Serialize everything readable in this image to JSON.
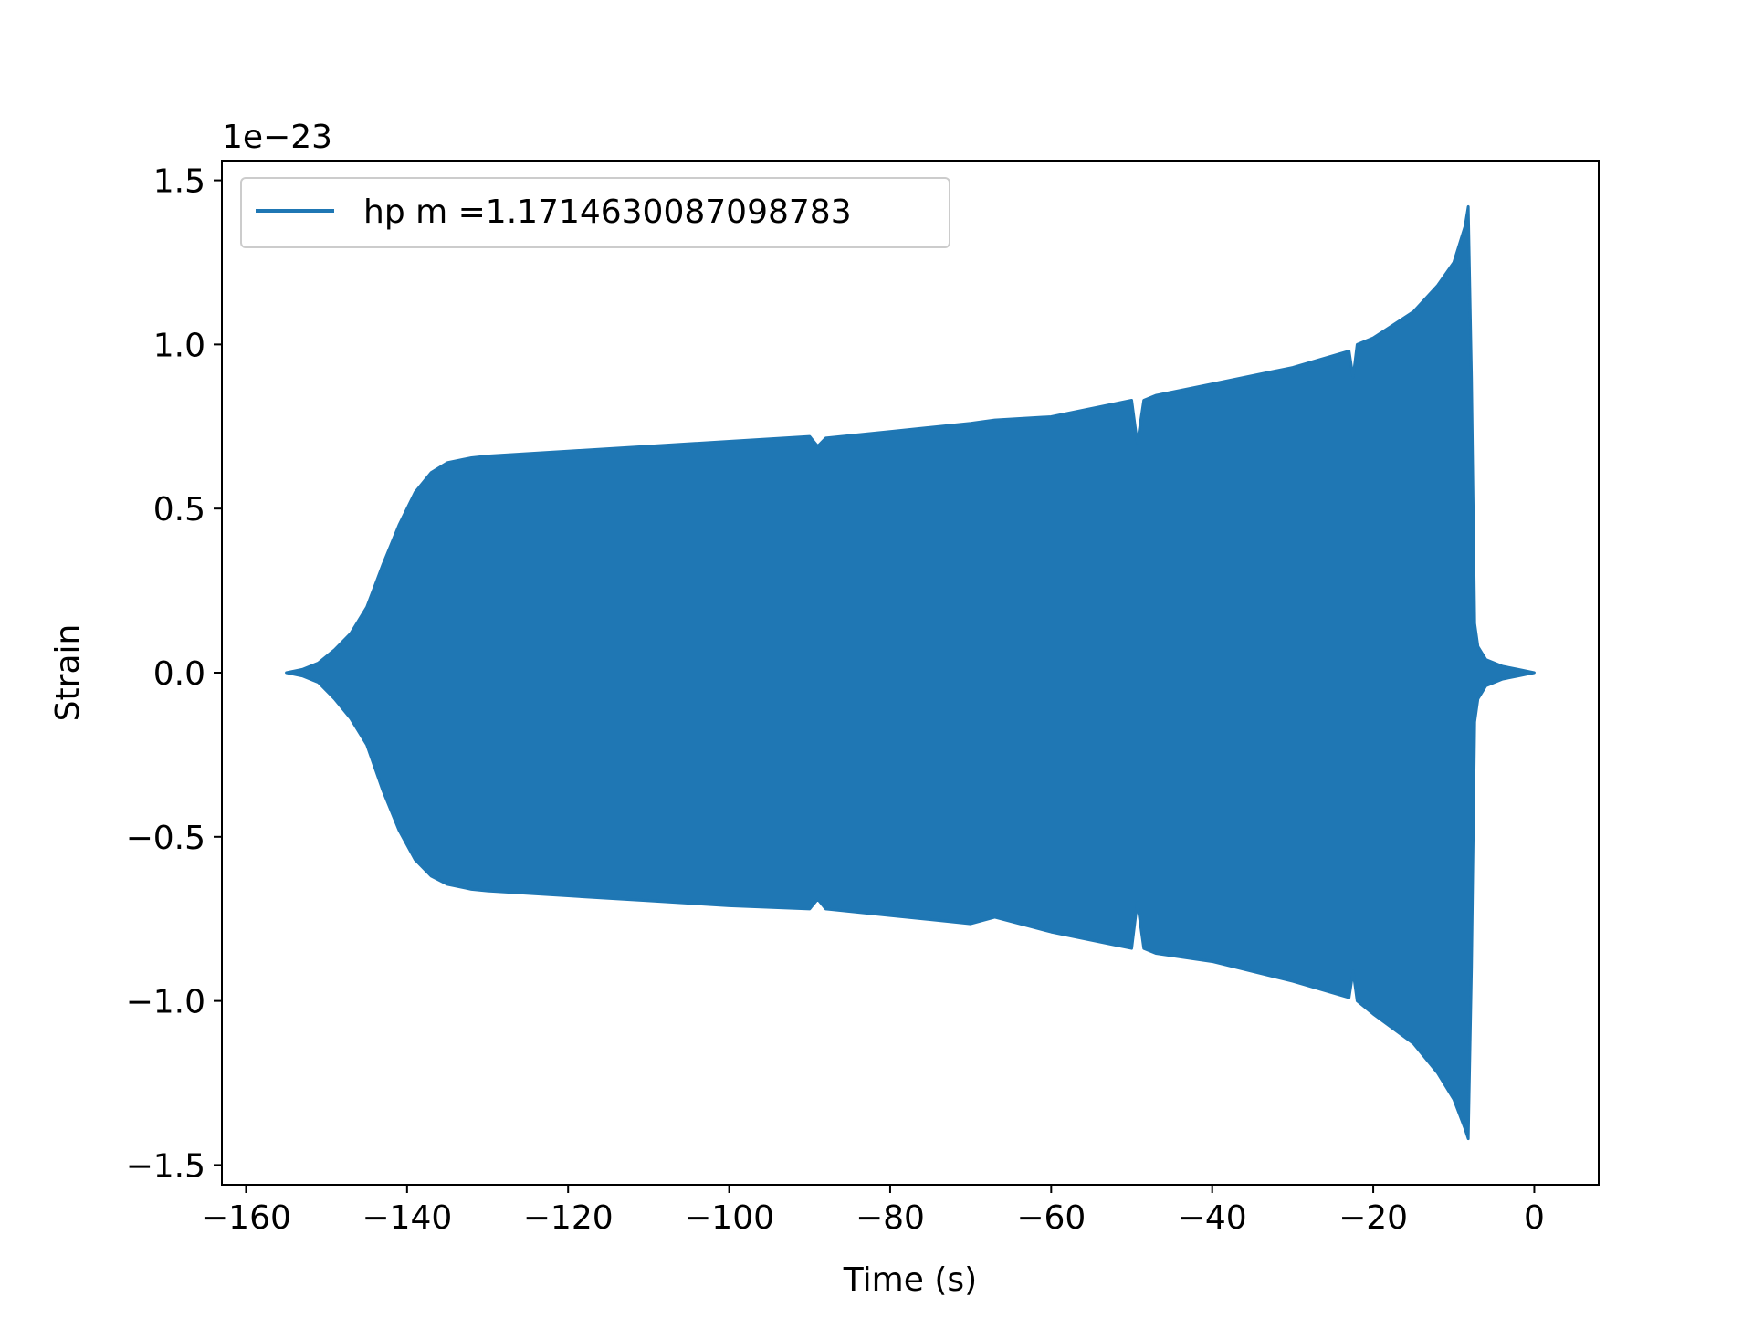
{
  "chart_data": {
    "type": "line",
    "title": "",
    "xlabel": "Time (s)",
    "ylabel": "Strain",
    "y_offset_label": "1e−23",
    "xlim": [
      -163,
      8
    ],
    "ylim": [
      -1.56,
      1.56
    ],
    "x_ticks": [
      -160,
      -140,
      -120,
      -100,
      -80,
      -60,
      -40,
      -20,
      0
    ],
    "x_tick_labels": [
      "−160",
      "−140",
      "−120",
      "−100",
      "−80",
      "−60",
      "−40",
      "−20",
      "0"
    ],
    "y_ticks": [
      1.5,
      1.0,
      0.5,
      0.0,
      -0.5,
      -1.0,
      -1.5
    ],
    "y_tick_labels": [
      "1.5",
      "1.0",
      "0.5",
      "0.0",
      "−0.5",
      "−1.0",
      "−1.5"
    ],
    "grid": false,
    "legend_position": "top-left",
    "series": [
      {
        "name": "hp m =1.1714630087098783",
        "color": "#1f77b4",
        "envelope": {
          "note_units": "strain x 1e-23, envelope of oscillating waveform",
          "x": [
            -155,
            -153,
            -151,
            -149,
            -147,
            -145,
            -143,
            -141,
            -139,
            -137,
            -135,
            -133,
            -132,
            -130,
            -120,
            -110,
            -100,
            -90,
            -89,
            -88,
            -80,
            -70,
            -67,
            -60,
            -52,
            -50,
            -49.3,
            -48.5,
            -47,
            -40,
            -30,
            -23,
            -22.5,
            -22,
            -20,
            -15,
            -12,
            -10,
            -8.6,
            -8.2,
            -7.8,
            -7.4,
            -7,
            -6,
            -4,
            -2,
            0
          ],
          "upper": [
            0.0,
            0.01,
            0.03,
            0.07,
            0.12,
            0.2,
            0.33,
            0.45,
            0.55,
            0.61,
            0.64,
            0.65,
            0.655,
            0.66,
            0.675,
            0.69,
            0.705,
            0.72,
            0.69,
            0.715,
            0.735,
            0.76,
            0.77,
            0.78,
            0.82,
            0.83,
            0.7,
            0.83,
            0.845,
            0.88,
            0.93,
            0.98,
            0.9,
            1.0,
            1.02,
            1.1,
            1.18,
            1.25,
            1.36,
            1.42,
            0.9,
            0.15,
            0.08,
            0.04,
            0.02,
            0.01,
            0.0
          ],
          "lower": [
            0.0,
            -0.01,
            -0.03,
            -0.08,
            -0.14,
            -0.22,
            -0.36,
            -0.48,
            -0.57,
            -0.62,
            -0.645,
            -0.655,
            -0.66,
            -0.665,
            -0.68,
            -0.695,
            -0.71,
            -0.72,
            -0.69,
            -0.72,
            -0.74,
            -0.765,
            -0.745,
            -0.79,
            -0.83,
            -0.84,
            -0.7,
            -0.84,
            -0.855,
            -0.88,
            -0.94,
            -0.99,
            -0.91,
            -1.0,
            -1.04,
            -1.13,
            -1.22,
            -1.3,
            -1.39,
            -1.42,
            -0.9,
            -0.15,
            -0.08,
            -0.04,
            -0.02,
            -0.01,
            0.0
          ]
        }
      }
    ]
  }
}
